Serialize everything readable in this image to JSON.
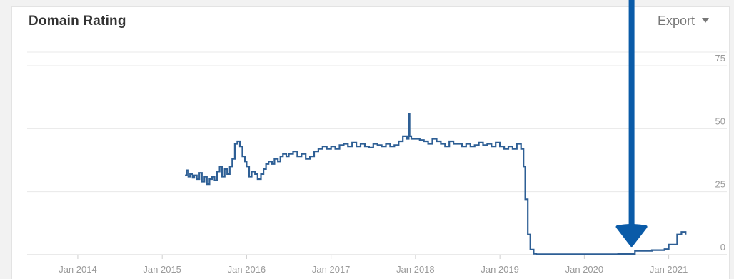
{
  "header": {
    "title": "Domain Rating",
    "export_label": "Export"
  },
  "colors": {
    "line": "#2e5f95",
    "arrow": "#0a5ba8",
    "grid": "#e8e8e8",
    "tick": "#9a9a9a",
    "title": "#333333"
  },
  "annotation": {
    "type": "arrow-down",
    "color": "#0a5ba8",
    "x_date": "2020.56"
  },
  "chart_data": {
    "type": "line",
    "title": "Domain Rating",
    "xlabel": "",
    "ylabel": "",
    "x_ticks": [
      "Jan 2014",
      "Jan 2015",
      "Jan 2016",
      "Jan 2017",
      "Jan 2018",
      "Jan 2019",
      "Jan 2020",
      "Jan 2021"
    ],
    "x_tick_years": [
      2014,
      2015,
      2016,
      2017,
      2018,
      2019,
      2020,
      2021
    ],
    "y_ticks": [
      0,
      25,
      50,
      75
    ],
    "ylim": [
      0,
      75
    ],
    "xlim": [
      2013.4,
      2021.35
    ],
    "grid": true,
    "legend": "none",
    "series": [
      {
        "x": [
          2015.27,
          2015.29,
          2015.31,
          2015.33,
          2015.36,
          2015.38,
          2015.41,
          2015.44,
          2015.47,
          2015.5,
          2015.53,
          2015.56,
          2015.59,
          2015.62,
          2015.65,
          2015.68,
          2015.71,
          2015.74,
          2015.77,
          2015.8,
          2015.83,
          2015.86,
          2015.89,
          2015.92,
          2015.95,
          2015.98,
          2016.0,
          2016.03,
          2016.06,
          2016.1,
          2016.13,
          2016.17,
          2016.2,
          2016.23,
          2016.26,
          2016.3,
          2016.33,
          2016.37,
          2016.4,
          2016.43,
          2016.47,
          2016.5,
          2016.55,
          2016.6,
          2016.65,
          2016.7,
          2016.75,
          2016.8,
          2016.85,
          2016.9,
          2016.95,
          2017.0,
          2017.05,
          2017.1,
          2017.15,
          2017.2,
          2017.25,
          2017.3,
          2017.35,
          2017.4,
          2017.45,
          2017.5,
          2017.55,
          2017.6,
          2017.65,
          2017.7,
          2017.75,
          2017.8,
          2017.85,
          2017.9,
          2017.92,
          2017.93,
          2017.95,
          2018.0,
          2018.05,
          2018.1,
          2018.15,
          2018.2,
          2018.25,
          2018.3,
          2018.35,
          2018.4,
          2018.45,
          2018.5,
          2018.55,
          2018.6,
          2018.65,
          2018.7,
          2018.75,
          2018.8,
          2018.85,
          2018.9,
          2018.95,
          2019.0,
          2019.05,
          2019.1,
          2019.15,
          2019.2,
          2019.25,
          2019.28,
          2019.3,
          2019.33,
          2019.36,
          2019.4,
          2019.43,
          2019.46,
          2019.5,
          2019.55,
          2019.6,
          2019.8,
          2020.0,
          2020.2,
          2020.4,
          2020.6,
          2020.8,
          2020.95,
          2021.0,
          2021.05,
          2021.1,
          2021.15,
          2021.2
        ],
        "y": [
          31.5,
          33.5,
          31,
          32,
          30.5,
          31.5,
          30,
          32.5,
          29,
          31,
          28,
          30,
          31,
          29.5,
          33,
          35,
          31,
          34,
          32,
          35,
          38,
          44,
          45,
          43,
          39,
          37,
          35,
          31,
          33,
          32,
          30,
          32,
          34,
          36,
          37,
          36,
          38,
          37,
          39,
          40,
          39,
          40,
          41,
          39,
          40,
          38,
          39,
          41,
          42,
          43,
          42,
          43,
          42,
          43.5,
          44,
          43,
          44.5,
          43,
          44,
          43,
          42.5,
          44,
          43.5,
          43,
          44,
          43,
          43.5,
          45,
          47,
          46,
          56,
          47,
          46,
          46,
          45.5,
          45,
          44,
          46,
          45,
          44,
          43,
          45,
          44,
          44,
          43,
          44,
          43,
          43.5,
          44.5,
          43.5,
          44,
          43,
          44.5,
          43,
          42,
          43,
          42,
          44,
          42,
          35,
          22,
          8,
          2,
          0.4,
          0.2,
          0.2,
          0.2,
          0.2,
          0.2,
          0.2,
          0.2,
          0.2,
          0.3,
          1.5,
          1.8,
          2.2,
          4,
          4,
          8,
          9,
          8
        ]
      }
    ]
  }
}
